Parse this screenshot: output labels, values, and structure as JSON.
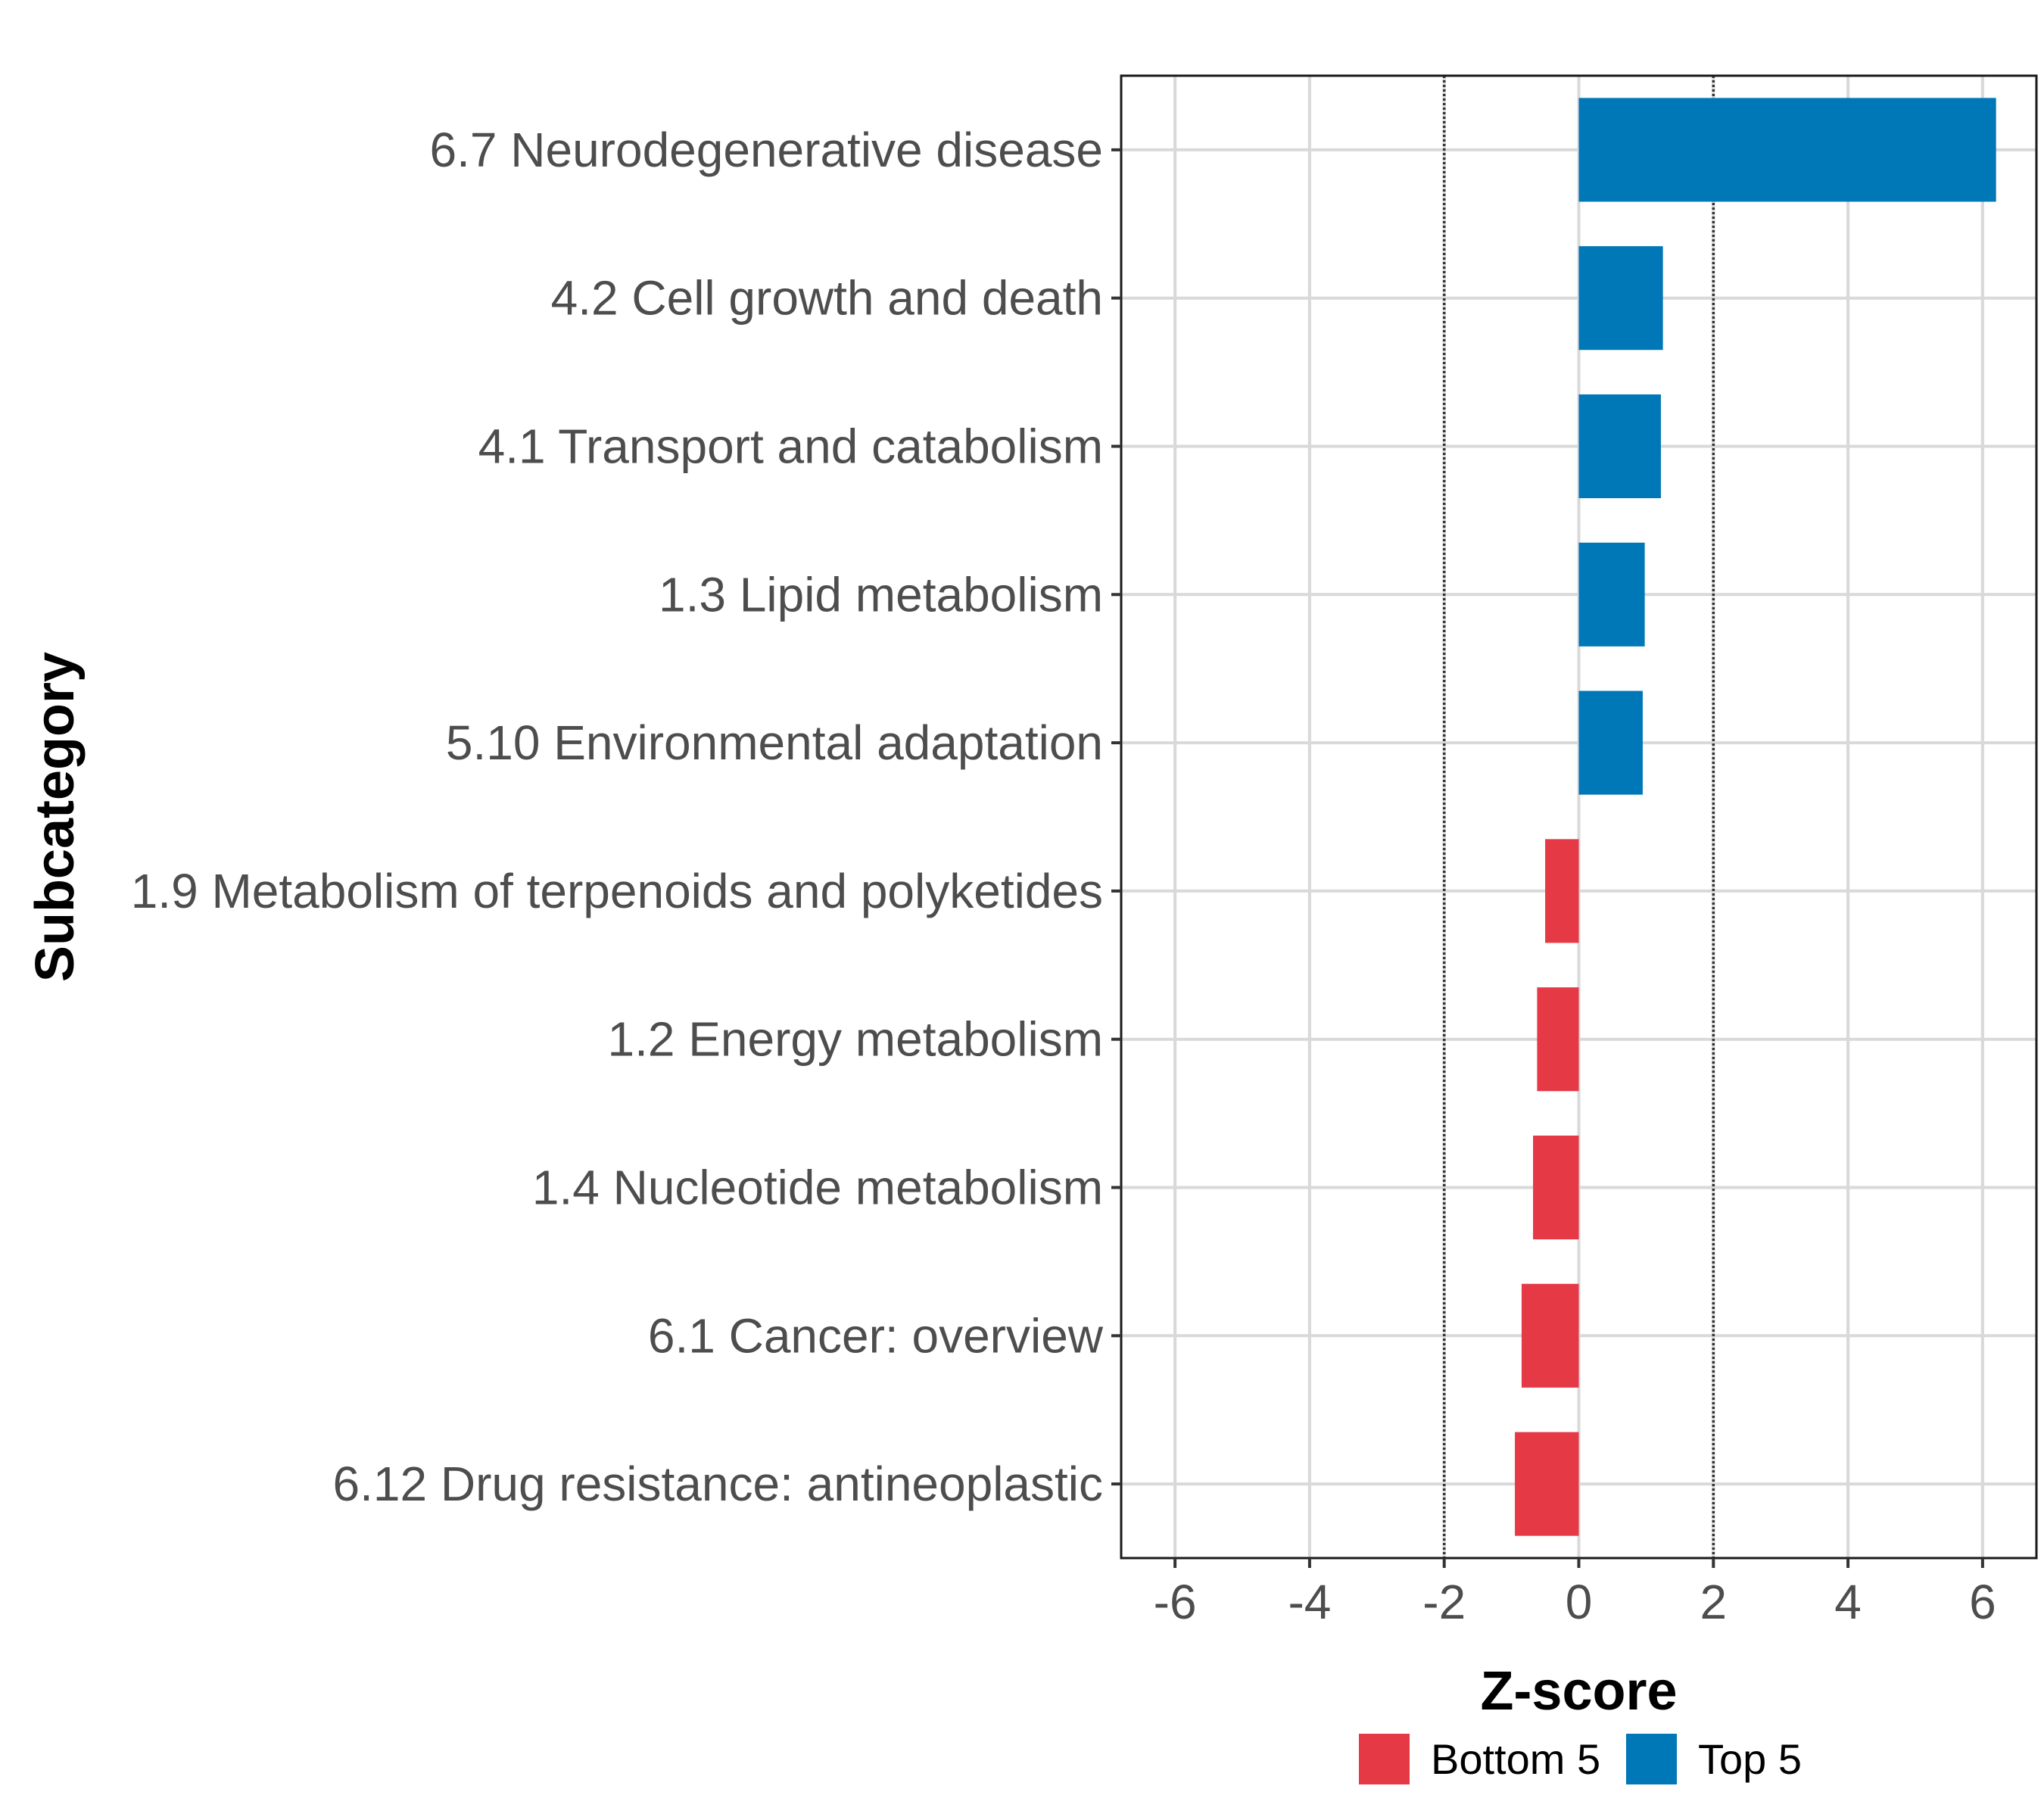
{
  "chart_data": {
    "type": "bar",
    "orientation": "horizontal",
    "categories": [
      "6.7 Neurodegenerative disease",
      "4.2 Cell growth and death",
      "4.1 Transport and catabolism",
      "1.3 Lipid metabolism",
      "5.10 Environmental adaptation",
      "1.9 Metabolism of terpenoids and polyketides",
      "1.2 Energy metabolism",
      "1.4 Nucleotide metabolism",
      "6.1 Cancer: overview",
      "6.12 Drug resistance: antineoplastic"
    ],
    "values": [
      6.2,
      1.25,
      1.22,
      0.98,
      0.95,
      -0.5,
      -0.62,
      -0.68,
      -0.85,
      -0.95
    ],
    "groups": [
      "Top 5",
      "Top 5",
      "Top 5",
      "Top 5",
      "Top 5",
      "Bottom 5",
      "Bottom 5",
      "Bottom 5",
      "Bottom 5",
      "Bottom 5"
    ],
    "xlabel": "Z-score",
    "ylabel": "Subcategory",
    "xlim": [
      -6.8,
      6.8
    ],
    "xticks": [
      -6,
      -4,
      -2,
      0,
      2,
      4,
      6
    ],
    "xtick_labels": [
      "-6",
      "-4",
      "-2",
      "0",
      "2",
      "4",
      "6"
    ],
    "reference_lines": [
      -2,
      2
    ],
    "grid": true,
    "legend": {
      "position": "bottom",
      "items": [
        {
          "label": "Bottom 5",
          "color": "#e63946"
        },
        {
          "label": "Top 5",
          "color": "#0077b6"
        }
      ]
    },
    "colors": {
      "Top 5": "#0077b6",
      "Bottom 5": "#e63946"
    }
  }
}
